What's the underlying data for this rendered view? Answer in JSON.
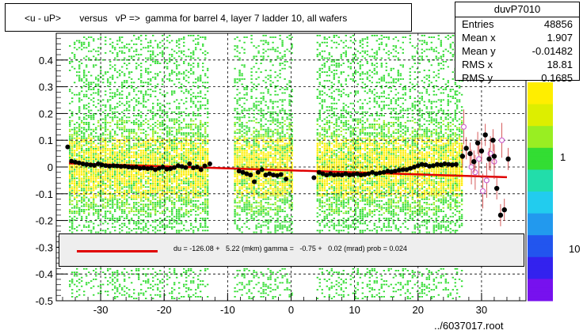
{
  "title": "<u - uP>       versus   vP =>  gamma for barrel 4, layer 7 ladder 10, all wafers",
  "stats": {
    "name": "duvP7010",
    "rows": [
      {
        "label": "Entries",
        "value": "48856"
      },
      {
        "label": "Mean x",
        "value": "1.907"
      },
      {
        "label": "Mean y",
        "value": "-0.01482"
      },
      {
        "label": "RMS x",
        "value": "18.81"
      },
      {
        "label": "RMS y",
        "value": "0.1685"
      }
    ]
  },
  "fit_legend": "du = -126.08 +   5.22 (mkm) gamma =   -0.75 +   0.02 (mrad) prob = 0.024",
  "footer": "../6037017.root",
  "colors": {
    "fit_line": "#e00000",
    "profile_points": "#000000",
    "open_points": "#cc66cc",
    "density_low": "#33dd33",
    "density_high": "#ffee00"
  },
  "chart_data": {
    "type": "heatmap",
    "title": "<u - uP>       versus   vP =>  gamma for barrel 4, layer 7 ladder 10, all wafers",
    "xlim": [
      -37,
      37
    ],
    "ylim": [
      -0.5,
      0.5
    ],
    "x_ticks": [
      -30,
      -20,
      -10,
      0,
      10,
      20,
      30
    ],
    "y_ticks": [
      -0.5,
      -0.4,
      -0.3,
      -0.2,
      -0.1,
      0,
      0.1,
      0.2,
      0.3,
      0.4
    ],
    "grid": true,
    "colorbar_ticks": [
      "1",
      "10"
    ],
    "density_bands_x": [
      [
        -35,
        -13
      ],
      [
        -9,
        0
      ],
      [
        4,
        26
      ],
      [
        26,
        27
      ]
    ],
    "fit_line": {
      "intercept": -0.0126,
      "slope": -0.00075,
      "x_range": [
        -35,
        34
      ]
    },
    "profile_points": [
      {
        "x": -35.2,
        "y": 0.075
      },
      {
        "x": -34.6,
        "y": 0.022
      },
      {
        "x": -34.0,
        "y": 0.018
      },
      {
        "x": -33.4,
        "y": 0.015
      },
      {
        "x": -32.8,
        "y": 0.012
      },
      {
        "x": -32.2,
        "y": 0.01
      },
      {
        "x": -31.6,
        "y": 0.008
      },
      {
        "x": -31.0,
        "y": 0.006
      },
      {
        "x": -30.4,
        "y": 0.012
      },
      {
        "x": -29.8,
        "y": 0.008
      },
      {
        "x": -29.2,
        "y": 0.005
      },
      {
        "x": -28.6,
        "y": 0.003
      },
      {
        "x": -28.0,
        "y": 0.005
      },
      {
        "x": -27.4,
        "y": 0.004
      },
      {
        "x": -26.8,
        "y": 0.002
      },
      {
        "x": -26.2,
        "y": 0.003
      },
      {
        "x": -25.6,
        "y": 0.0
      },
      {
        "x": -25.0,
        "y": -0.002
      },
      {
        "x": -24.4,
        "y": 0.0
      },
      {
        "x": -23.8,
        "y": -0.005
      },
      {
        "x": -23.2,
        "y": -0.003
      },
      {
        "x": -22.6,
        "y": -0.006
      },
      {
        "x": -22.0,
        "y": -0.004
      },
      {
        "x": -21.4,
        "y": -0.01
      },
      {
        "x": -20.8,
        "y": -0.005
      },
      {
        "x": -20.2,
        "y": 0.0
      },
      {
        "x": -19.6,
        "y": -0.008
      },
      {
        "x": -19.0,
        "y": -0.006
      },
      {
        "x": -18.4,
        "y": -0.002
      },
      {
        "x": -17.8,
        "y": 0.005
      },
      {
        "x": -17.2,
        "y": 0.002
      },
      {
        "x": -16.6,
        "y": -0.002
      },
      {
        "x": -16.0,
        "y": 0.012
      },
      {
        "x": -15.4,
        "y": -0.003
      },
      {
        "x": -14.8,
        "y": 0.0
      },
      {
        "x": -14.2,
        "y": -0.01
      },
      {
        "x": -13.6,
        "y": 0.004
      },
      {
        "x": -12.8,
        "y": 0.012
      },
      {
        "x": -8.2,
        "y": -0.015
      },
      {
        "x": -7.6,
        "y": -0.02
      },
      {
        "x": -7.0,
        "y": -0.025
      },
      {
        "x": -6.4,
        "y": -0.03
      },
      {
        "x": -5.8,
        "y": -0.055
      },
      {
        "x": -5.2,
        "y": -0.02
      },
      {
        "x": -4.6,
        "y": -0.01
      },
      {
        "x": -4.0,
        "y": -0.03
      },
      {
        "x": -3.4,
        "y": -0.025
      },
      {
        "x": -2.8,
        "y": -0.03
      },
      {
        "x": -2.2,
        "y": -0.032
      },
      {
        "x": -1.6,
        "y": -0.028
      },
      {
        "x": -0.8,
        "y": -0.045
      },
      {
        "x": 3.6,
        "y": -0.04
      },
      {
        "x": 4.4,
        "y": -0.02
      },
      {
        "x": 5.0,
        "y": -0.025
      },
      {
        "x": 5.6,
        "y": -0.03
      },
      {
        "x": 6.2,
        "y": -0.025
      },
      {
        "x": 6.8,
        "y": -0.03
      },
      {
        "x": 7.4,
        "y": -0.028
      },
      {
        "x": 8.0,
        "y": -0.03
      },
      {
        "x": 8.6,
        "y": -0.025
      },
      {
        "x": 9.2,
        "y": -0.03
      },
      {
        "x": 9.8,
        "y": -0.028
      },
      {
        "x": 10.4,
        "y": -0.025
      },
      {
        "x": 11.0,
        "y": -0.03
      },
      {
        "x": 11.6,
        "y": -0.028
      },
      {
        "x": 12.2,
        "y": -0.025
      },
      {
        "x": 12.8,
        "y": -0.02
      },
      {
        "x": 13.4,
        "y": -0.025
      },
      {
        "x": 14.0,
        "y": -0.022
      },
      {
        "x": 14.6,
        "y": -0.02
      },
      {
        "x": 15.2,
        "y": -0.015
      },
      {
        "x": 15.8,
        "y": -0.018
      },
      {
        "x": 16.4,
        "y": -0.015
      },
      {
        "x": 17.0,
        "y": -0.012
      },
      {
        "x": 17.6,
        "y": -0.01
      },
      {
        "x": 18.2,
        "y": -0.01
      },
      {
        "x": 18.8,
        "y": -0.005
      },
      {
        "x": 19.4,
        "y": 0.0
      },
      {
        "x": 20.0,
        "y": 0.005
      },
      {
        "x": 20.6,
        "y": 0.01
      },
      {
        "x": 21.2,
        "y": 0.008
      },
      {
        "x": 21.8,
        "y": 0.003
      },
      {
        "x": 22.4,
        "y": 0.005
      },
      {
        "x": 23.0,
        "y": 0.01
      },
      {
        "x": 23.6,
        "y": 0.008
      },
      {
        "x": 24.2,
        "y": 0.012
      },
      {
        "x": 24.8,
        "y": 0.01
      },
      {
        "x": 25.4,
        "y": 0.008
      },
      {
        "x": 26.0,
        "y": 0.01
      },
      {
        "x": 27.0,
        "y": 0.04
      },
      {
        "x": 27.6,
        "y": 0.07
      },
      {
        "x": 28.2,
        "y": 0.05
      },
      {
        "x": 28.8,
        "y": 0.02
      },
      {
        "x": 29.4,
        "y": 0.09
      },
      {
        "x": 30.0,
        "y": 0.06
      },
      {
        "x": 30.6,
        "y": 0.12
      },
      {
        "x": 31.2,
        "y": 0.03
      },
      {
        "x": 31.8,
        "y": 0.1
      },
      {
        "x": 32.4,
        "y": -0.08
      },
      {
        "x": 33.0,
        "y": -0.18
      },
      {
        "x": 33.6,
        "y": -0.16
      },
      {
        "x": 34.2,
        "y": 0.03
      },
      {
        "x": 32.0,
        "y": 0.04
      }
    ],
    "open_points": [
      {
        "x": 27.2,
        "y": 0.15
      },
      {
        "x": 28.4,
        "y": 0.0
      },
      {
        "x": 29.0,
        "y": -0.02
      },
      {
        "x": 29.6,
        "y": 0.03
      },
      {
        "x": 30.2,
        "y": -0.09
      },
      {
        "x": 30.8,
        "y": -0.05
      },
      {
        "x": 31.4,
        "y": 0.05
      },
      {
        "x": 32.0,
        "y": 0.02
      },
      {
        "x": 33.2,
        "y": 0.1
      }
    ]
  }
}
